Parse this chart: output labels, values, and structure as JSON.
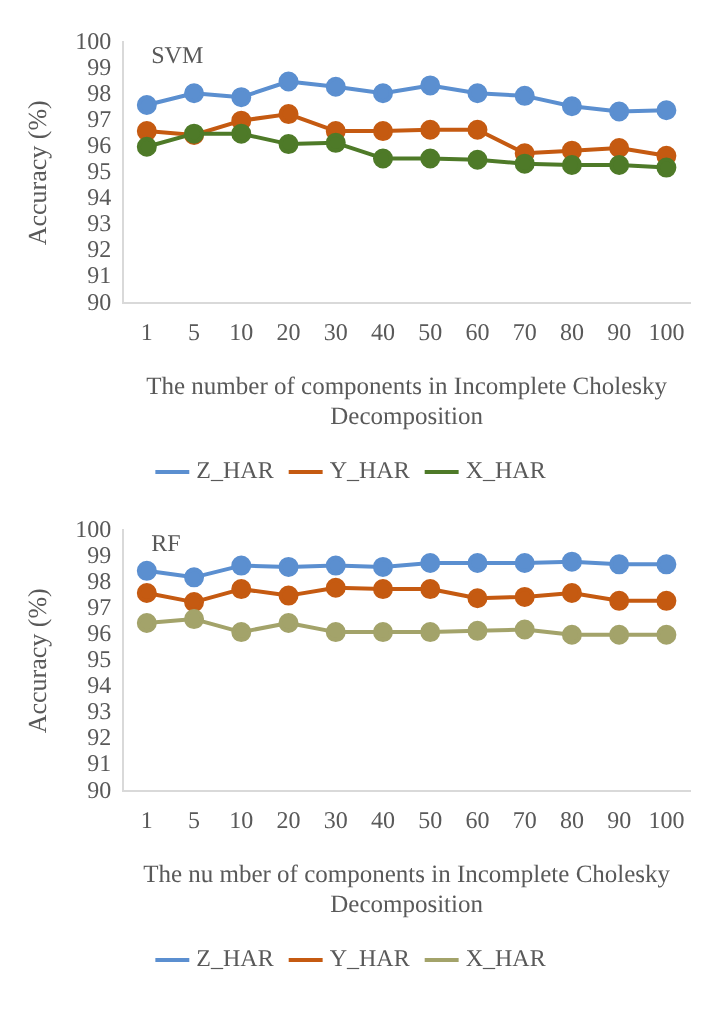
{
  "chart_data": [
    {
      "type": "line",
      "annotations": [
        "SVM"
      ],
      "xlabel": "The number of components in Incomplete Cholesky Decomposition",
      "ylabel": "Accuracy (%)",
      "categories": [
        "1",
        "5",
        "10",
        "20",
        "30",
        "40",
        "50",
        "60",
        "70",
        "80",
        "90",
        "100"
      ],
      "series": [
        {
          "name": "Z_HAR",
          "color": "#5b8fd0",
          "values": [
            97.6,
            98.05,
            97.9,
            98.5,
            98.3,
            98.05,
            98.35,
            98.05,
            97.95,
            97.55,
            97.35,
            97.4
          ]
        },
        {
          "name": "Y_HAR",
          "color": "#c55a11",
          "values": [
            96.6,
            96.45,
            97.0,
            97.25,
            96.6,
            96.6,
            96.65,
            96.65,
            95.75,
            95.85,
            95.95,
            95.65
          ]
        },
        {
          "name": "X_HAR",
          "color": "#4e7a28",
          "values": [
            96.0,
            96.5,
            96.5,
            96.1,
            96.15,
            95.55,
            95.55,
            95.5,
            95.35,
            95.3,
            95.3,
            95.2
          ]
        }
      ],
      "ylim": [
        90,
        100
      ],
      "yticks": [
        90,
        91,
        92,
        93,
        94,
        95,
        96,
        97,
        98,
        99,
        100
      ],
      "grid": false,
      "legend": "bottom",
      "marker": "circle",
      "line_style": "solid"
    },
    {
      "type": "line",
      "annotations": [
        "RF"
      ],
      "xlabel": "The nu mber of components in Incomplete Cholesky Decomposition",
      "ylabel": "Accuracy (%)",
      "categories": [
        "1",
        "5",
        "10",
        "20",
        "30",
        "40",
        "50",
        "60",
        "70",
        "80",
        "90",
        "100"
      ],
      "series": [
        {
          "name": "Z_HAR",
          "color": "#5b8fd0",
          "values": [
            98.45,
            98.2,
            98.65,
            98.6,
            98.65,
            98.6,
            98.75,
            98.75,
            98.75,
            98.8,
            98.7,
            98.7
          ]
        },
        {
          "name": "Y_HAR",
          "color": "#c55a11",
          "values": [
            97.6,
            97.25,
            97.75,
            97.5,
            97.8,
            97.75,
            97.75,
            97.4,
            97.45,
            97.6,
            97.3,
            97.3
          ]
        },
        {
          "name": "X_HAR",
          "color": "#a3a36a",
          "values": [
            96.45,
            96.6,
            96.1,
            96.45,
            96.1,
            96.1,
            96.1,
            96.15,
            96.2,
            96.0,
            96.0,
            96.0
          ]
        }
      ],
      "ylim": [
        90,
        100
      ],
      "yticks": [
        90,
        91,
        92,
        93,
        94,
        95,
        96,
        97,
        98,
        99,
        100
      ],
      "grid": false,
      "legend": "bottom",
      "marker": "circle",
      "line_style": "solid"
    }
  ]
}
